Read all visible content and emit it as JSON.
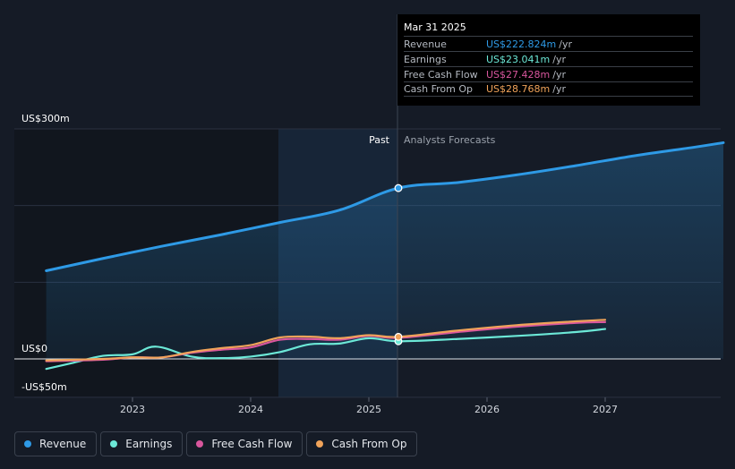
{
  "tooltip": {
    "date": "Mar 31 2025",
    "rows": [
      {
        "name": "Revenue",
        "value": "US$222.824m",
        "unit": "/yr",
        "color": "#2e9ae6"
      },
      {
        "name": "Earnings",
        "value": "US$23.041m",
        "unit": "/yr",
        "color": "#6ce8d7"
      },
      {
        "name": "Free Cash Flow",
        "value": "US$27.428m",
        "unit": "/yr",
        "color": "#d8569d"
      },
      {
        "name": "Cash From Op",
        "value": "US$28.768m",
        "unit": "/yr",
        "color": "#f0a35a"
      }
    ]
  },
  "period_labels": {
    "past": "Past",
    "forecast": "Analysts Forecasts"
  },
  "legend": [
    {
      "label": "Revenue",
      "color": "#2e9ae6"
    },
    {
      "label": "Earnings",
      "color": "#6ce8d7"
    },
    {
      "label": "Free Cash Flow",
      "color": "#d8569d"
    },
    {
      "label": "Cash From Op",
      "color": "#f0a35a"
    }
  ],
  "chart_data": {
    "type": "line",
    "y_axis_labels": [
      "US$300m",
      "US$0",
      "-US$50m"
    ],
    "x_tick_labels": [
      "2023",
      "2024",
      "2025",
      "2026",
      "2027"
    ],
    "x_range": [
      2022.27,
      2028.0
    ],
    "ylim": [
      -50,
      300
    ],
    "grid": true,
    "legend_position": "bottom",
    "divider_x": 2025.25,
    "series": [
      {
        "name": "Revenue",
        "color": "#2e9ae6",
        "fill": true,
        "x": [
          2022.27,
          2022.75,
          2023.25,
          2023.75,
          2024.25,
          2024.75,
          2025.25,
          2025.75,
          2026.25,
          2026.75,
          2027.25,
          2027.75,
          2028.0
        ],
        "y": [
          115,
          131,
          147,
          162,
          178,
          194,
          222.824,
          230,
          240,
          252,
          265,
          276,
          282
        ]
      },
      {
        "name": "Earnings",
        "color": "#6ce8d7",
        "fill": false,
        "x": [
          2022.27,
          2022.5,
          2022.75,
          2023.0,
          2023.2,
          2023.5,
          2023.75,
          2024.0,
          2024.25,
          2024.5,
          2024.75,
          2025.0,
          2025.25,
          2025.75,
          2026.25,
          2026.75,
          2027.0
        ],
        "y": [
          -13,
          -5,
          4,
          6,
          16,
          3,
          1,
          3,
          9,
          19,
          20,
          27,
          23.041,
          26,
          30,
          35,
          39
        ]
      },
      {
        "name": "Free Cash Flow",
        "color": "#d8569d",
        "fill": false,
        "x": [
          2022.27,
          2022.75,
          2023.0,
          2023.25,
          2023.5,
          2023.75,
          2024.0,
          2024.25,
          2024.5,
          2024.75,
          2025.0,
          2025.25,
          2025.75,
          2026.25,
          2026.75,
          2027.0
        ],
        "y": [
          -3,
          -1,
          2,
          2,
          8,
          12,
          15,
          25,
          26,
          25,
          30,
          27.428,
          35,
          42,
          47,
          48
        ]
      },
      {
        "name": "Cash From Op",
        "color": "#f0a35a",
        "fill": false,
        "x": [
          2022.27,
          2022.75,
          2023.0,
          2023.25,
          2023.5,
          2023.75,
          2024.0,
          2024.25,
          2024.5,
          2024.75,
          2025.0,
          2025.25,
          2025.75,
          2026.25,
          2026.75,
          2027.0
        ],
        "y": [
          -2,
          0,
          2,
          2,
          9,
          14,
          18,
          28,
          29,
          27,
          31,
          28.768,
          37,
          44,
          49,
          51
        ]
      }
    ]
  }
}
